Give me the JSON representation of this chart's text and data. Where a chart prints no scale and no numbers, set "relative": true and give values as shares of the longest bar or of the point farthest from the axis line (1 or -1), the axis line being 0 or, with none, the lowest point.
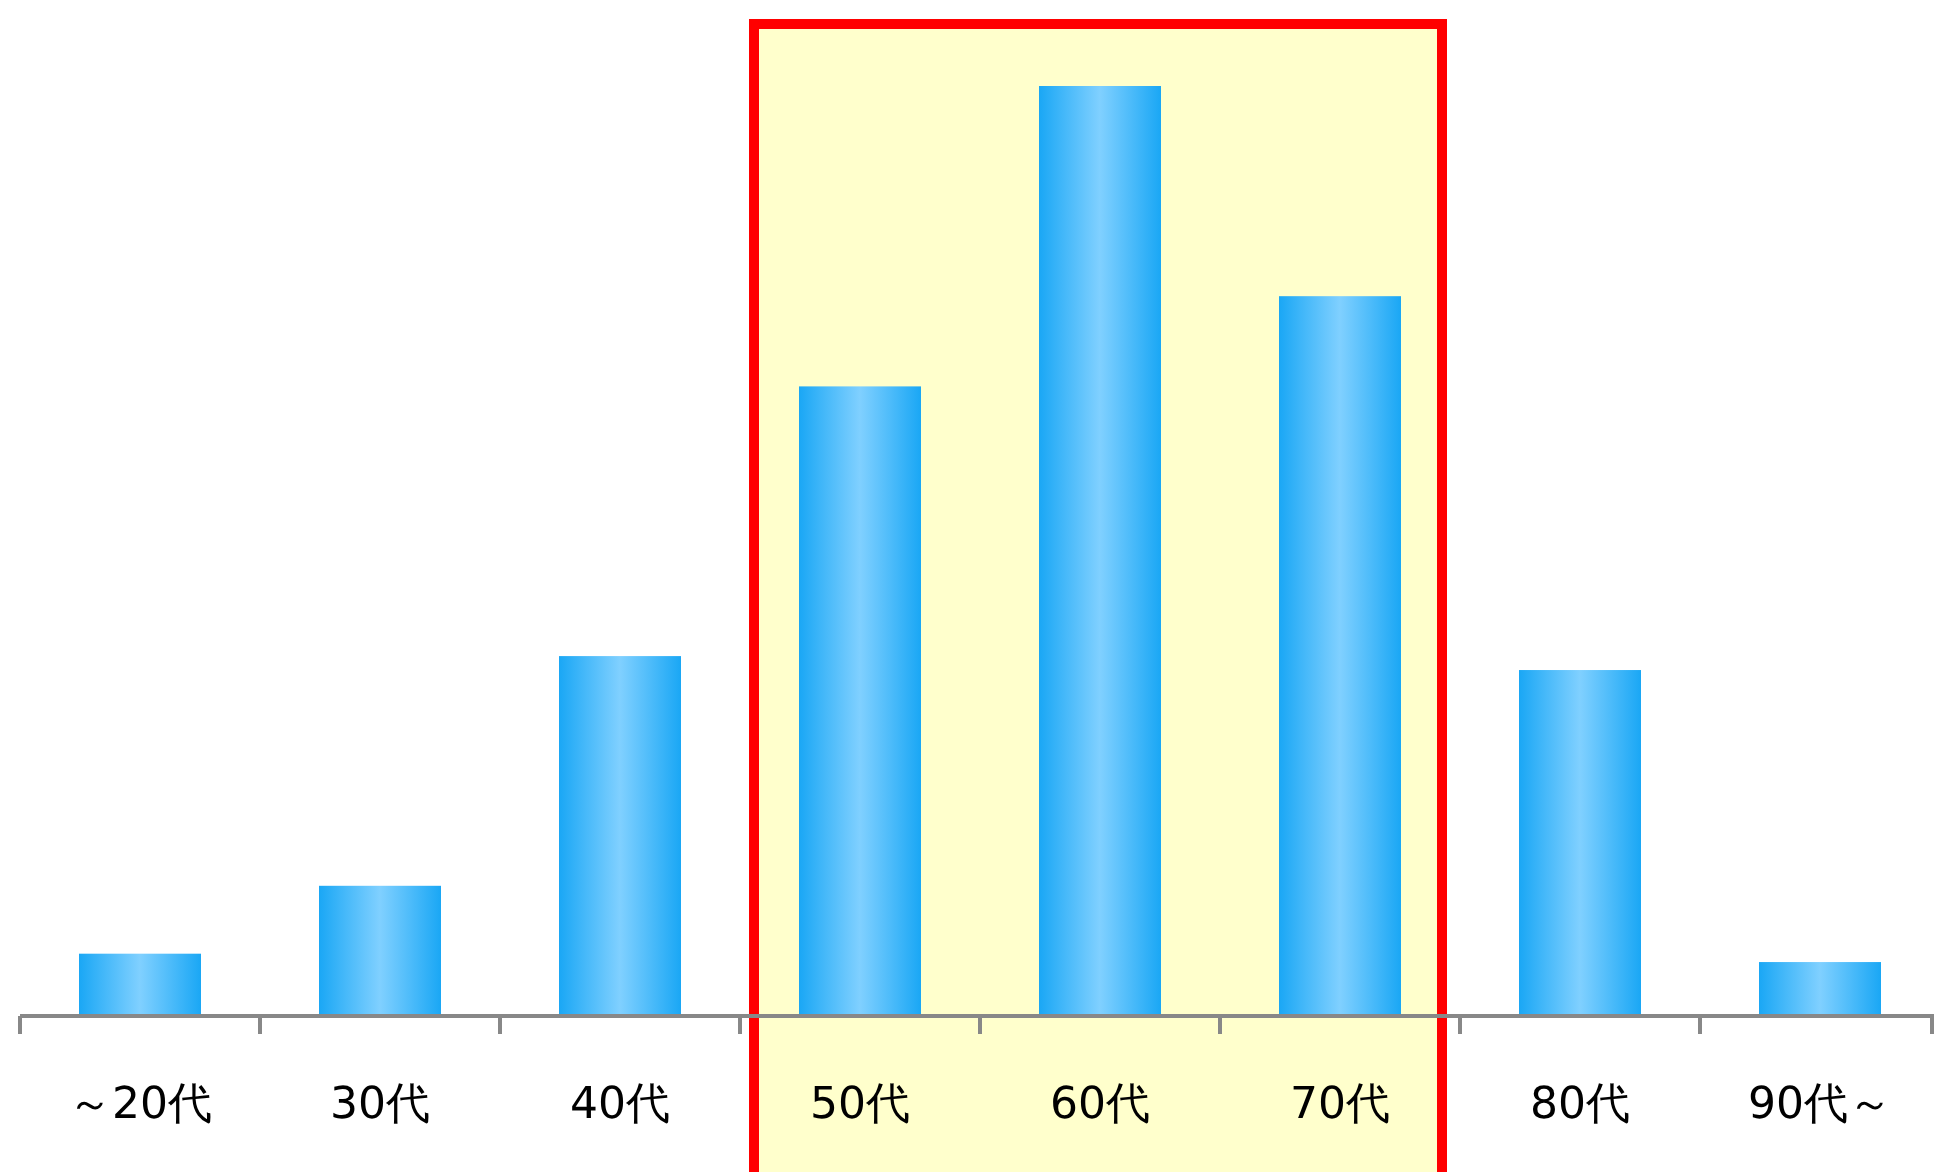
{
  "chart_data": {
    "type": "bar",
    "relative": true,
    "categories": [
      "～20代",
      "30代",
      "40代",
      "50代",
      "60代",
      "70代",
      "80代",
      "90代～"
    ],
    "values": [
      0.067,
      0.14,
      0.387,
      0.677,
      1,
      0.774,
      0.372,
      0.058
    ],
    "color": "#1aa7f5",
    "bands": [
      {
        "axis": "x",
        "from": "50代",
        "to": "70代",
        "color": "#ffffcc"
      }
    ]
  }
}
